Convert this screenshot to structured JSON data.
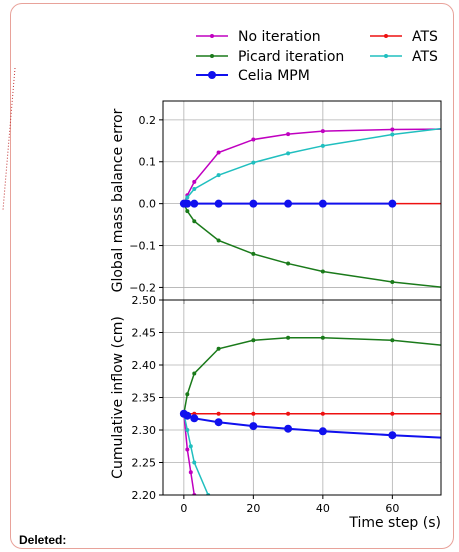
{
  "note": {
    "label": "Deleted:"
  },
  "colors": {
    "no_iter": "#c000c0",
    "picard": "#1a7a1a",
    "celia": "#1010ee",
    "ats_red": "#ee1010",
    "ats_cyan": "#20bfbf"
  },
  "legend": {
    "entries": [
      {
        "label": "No iteration",
        "series_key": "no_iter"
      },
      {
        "label": "ATS",
        "series_key": "ats_red"
      },
      {
        "label": "Picard iteration",
        "series_key": "picard"
      },
      {
        "label": "ATS",
        "series_key": "ats_cyan"
      },
      {
        "label": "Celia MPM",
        "series_key": "celia"
      }
    ]
  },
  "chart_data": [
    {
      "type": "line",
      "ylabel": "Global mass balance error",
      "xlim": [
        -6,
        74
      ],
      "ylim": [
        -0.23,
        0.245
      ],
      "yticks": [
        "0.2",
        "0.1",
        "0.0",
        "−0.1",
        "−0.2"
      ],
      "ytick_values": [
        0.2,
        0.1,
        0.0,
        -0.1,
        -0.2
      ],
      "xtick_values": [
        0,
        20,
        40,
        60
      ],
      "grid": true,
      "series": [
        {
          "key": "no_iter",
          "x": [
            0,
            1,
            3,
            10,
            20,
            30,
            40,
            60,
            75
          ],
          "y": [
            0,
            0.02,
            0.052,
            0.122,
            0.153,
            0.166,
            0.173,
            0.177,
            0.178
          ]
        },
        {
          "key": "ats_cyan",
          "x": [
            0,
            1,
            3,
            10,
            20,
            30,
            40,
            60,
            75
          ],
          "y": [
            0,
            0.015,
            0.035,
            0.068,
            0.098,
            0.12,
            0.138,
            0.165,
            0.18
          ]
        },
        {
          "key": "picard",
          "x": [
            0,
            1,
            3,
            10,
            20,
            30,
            40,
            60,
            75
          ],
          "y": [
            0,
            -0.018,
            -0.042,
            -0.088,
            -0.12,
            -0.143,
            -0.162,
            -0.187,
            -0.2
          ]
        },
        {
          "key": "ats_red",
          "x": [
            0,
            1,
            3,
            10,
            20,
            30,
            40,
            60,
            75
          ],
          "y": [
            0,
            0,
            0,
            0,
            0,
            0,
            0,
            0,
            0
          ]
        },
        {
          "key": "celia",
          "x": [
            0,
            1,
            3,
            10,
            20,
            30,
            40,
            60
          ],
          "y": [
            0,
            0,
            0,
            0,
            0,
            0,
            0,
            0
          ]
        }
      ]
    },
    {
      "type": "line",
      "ylabel": "Cumulative inflow (cm)",
      "xlabel": "Time step (s)",
      "xlim": [
        -6,
        74
      ],
      "ylim": [
        2.2,
        2.5
      ],
      "yticks": [
        "2.50",
        "2.45",
        "2.40",
        "2.35",
        "2.30",
        "2.25",
        "2.20"
      ],
      "ytick_values": [
        2.5,
        2.45,
        2.4,
        2.35,
        2.3,
        2.25,
        2.2
      ],
      "xticks": [
        "0",
        "20",
        "40",
        "60"
      ],
      "xtick_values": [
        0,
        20,
        40,
        60
      ],
      "grid": true,
      "series": [
        {
          "key": "no_iter",
          "x": [
            0,
            1,
            2,
            3
          ],
          "y": [
            2.325,
            2.27,
            2.235,
            2.2
          ]
        },
        {
          "key": "ats_cyan",
          "x": [
            0,
            1,
            2,
            3,
            7
          ],
          "y": [
            2.325,
            2.3,
            2.275,
            2.25,
            2.2
          ]
        },
        {
          "key": "picard",
          "x": [
            0,
            1,
            3,
            10,
            20,
            30,
            40,
            60,
            75
          ],
          "y": [
            2.325,
            2.355,
            2.387,
            2.425,
            2.438,
            2.442,
            2.442,
            2.438,
            2.43
          ]
        },
        {
          "key": "ats_red",
          "x": [
            0,
            1,
            3,
            10,
            20,
            30,
            40,
            60,
            75
          ],
          "y": [
            2.327,
            2.325,
            2.325,
            2.325,
            2.325,
            2.325,
            2.325,
            2.325,
            2.325
          ]
        },
        {
          "key": "celia",
          "x": [
            0,
            1,
            3,
            10,
            20,
            30,
            40,
            60,
            75
          ],
          "y": [
            2.325,
            2.322,
            2.318,
            2.312,
            2.306,
            2.302,
            2.298,
            2.292,
            2.288
          ]
        }
      ]
    }
  ]
}
